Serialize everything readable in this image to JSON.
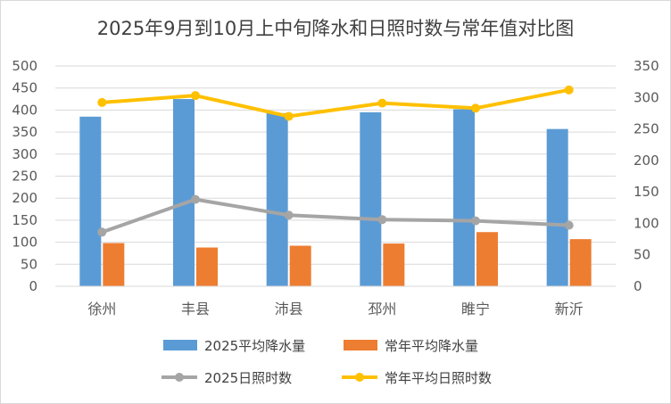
{
  "chart_data": {
    "type": "bar+line",
    "title": "2025年9月到10月上中旬降水和日照时数与常年值对比图",
    "categories": [
      "徐州",
      "丰县",
      "沛县",
      "邳州",
      "睢宁",
      "新沂"
    ],
    "series": [
      {
        "name": "2025平均降水量",
        "type": "bar",
        "axis": "left",
        "color": "#5b9bd5",
        "values": [
          385,
          425,
          393,
          395,
          402,
          357
        ]
      },
      {
        "name": "常年平均降水量",
        "type": "bar",
        "axis": "left",
        "color": "#ed7d31",
        "values": [
          98,
          88,
          92,
          97,
          123,
          107
        ]
      },
      {
        "name": "2025日照时数",
        "type": "line",
        "axis": "right",
        "color": "#a5a5a5",
        "values": [
          86,
          138,
          113,
          106,
          104,
          97
        ]
      },
      {
        "name": "常年平均日照时数",
        "type": "line",
        "axis": "right",
        "color": "#ffc000",
        "values": [
          292,
          303,
          270,
          291,
          283,
          312
        ]
      }
    ],
    "y_left": {
      "min": 0,
      "max": 500,
      "step": 50,
      "ticks": [
        "0",
        "50",
        "100",
        "150",
        "200",
        "250",
        "300",
        "350",
        "400",
        "450",
        "500"
      ]
    },
    "y_right": {
      "min": 0,
      "max": 350,
      "step": 50,
      "ticks": [
        "0",
        "50",
        "100",
        "150",
        "200",
        "250",
        "300",
        "350"
      ]
    },
    "grid": true,
    "legend": "bottom"
  }
}
